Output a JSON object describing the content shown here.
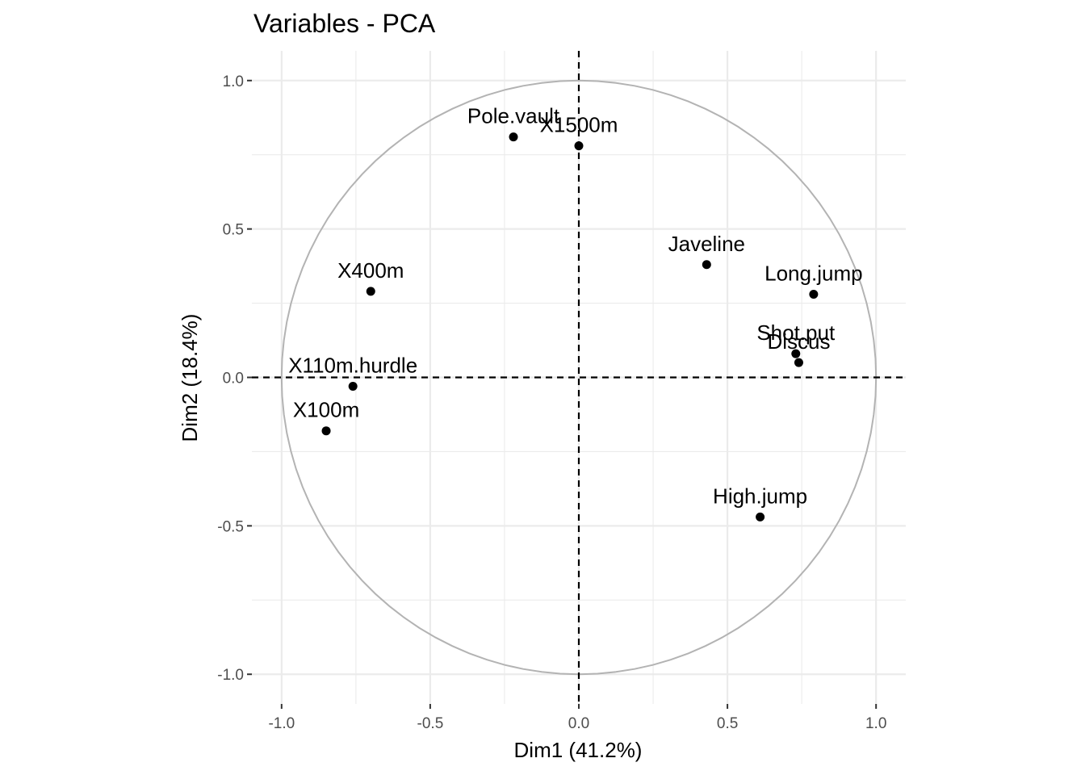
{
  "chart_data": {
    "type": "scatter",
    "title": "Variables - PCA",
    "xlabel": "Dim1 (41.2%)",
    "ylabel": "Dim2 (18.4%)",
    "xlim": [
      -1.1,
      1.1
    ],
    "ylim": [
      -1.1,
      1.1
    ],
    "x_ticks": [
      -1.0,
      -0.5,
      0.0,
      0.5,
      1.0
    ],
    "x_tick_labels": [
      "-1.0",
      "-0.5",
      "0.0",
      "0.5",
      "1.0"
    ],
    "y_ticks": [
      -1.0,
      -0.5,
      0.0,
      0.5,
      1.0
    ],
    "y_tick_labels": [
      "-1.0",
      "-0.5",
      "0.0",
      "0.5",
      "1.0"
    ],
    "grid": true,
    "unit_circle": true,
    "reference_lines": {
      "x": 0,
      "y": 0,
      "style": "dashed"
    },
    "colors": {
      "point": "#000000",
      "circle": "#b3b3b3",
      "grid": "#ebebeb",
      "reference": "#000000"
    },
    "points": [
      {
        "label": "Pole.vault",
        "x": -0.22,
        "y": 0.81
      },
      {
        "label": "X1500m",
        "x": 0.0,
        "y": 0.78
      },
      {
        "label": "Javeline",
        "x": 0.43,
        "y": 0.38
      },
      {
        "label": "Long.jump",
        "x": 0.79,
        "y": 0.28
      },
      {
        "label": "X400m",
        "x": -0.7,
        "y": 0.29
      },
      {
        "label": "Shot.put",
        "x": 0.73,
        "y": 0.08
      },
      {
        "label": "Discus",
        "x": 0.74,
        "y": 0.05
      },
      {
        "label": "X110m.hurdle",
        "x": -0.76,
        "y": -0.03
      },
      {
        "label": "X100m",
        "x": -0.85,
        "y": -0.18
      },
      {
        "label": "High.jump",
        "x": 0.61,
        "y": -0.47
      }
    ]
  }
}
